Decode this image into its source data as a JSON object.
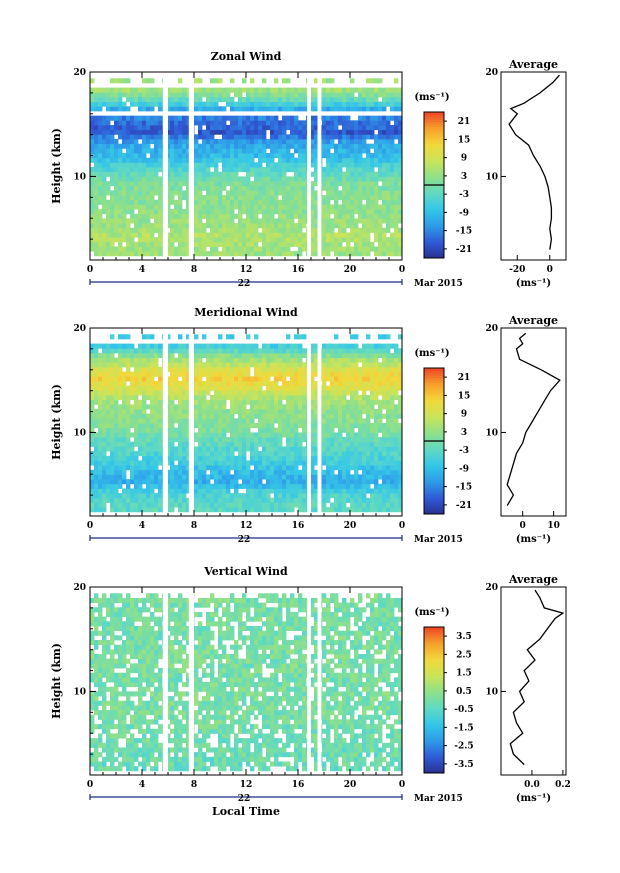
{
  "chart_data": [
    {
      "type": "heatmap",
      "title": "Zonal Wind",
      "ylabel": "Height (km)",
      "xlabel": "",
      "x_ticks": [
        "0",
        "4",
        "8",
        "12",
        "16",
        "20",
        "0"
      ],
      "y_ticks": [
        "20",
        "10"
      ],
      "xlim": [
        0,
        24
      ],
      "ylim": [
        2,
        20
      ],
      "date_label": "22",
      "month_label": "Mar 2015",
      "colorbar": {
        "unit": "(ms⁻¹)",
        "ticks": [
          "21",
          "15",
          "9",
          "3",
          "-3",
          "-9",
          "-15",
          "-21"
        ],
        "range": [
          -24,
          24
        ]
      },
      "rows": [
        {
          "h": 18.0,
          "v": 4
        },
        {
          "h": 17.0,
          "v": -3
        },
        {
          "h": 16.0,
          "v": -14
        },
        {
          "h": 15.0,
          "v": -17
        },
        {
          "h": 14.0,
          "v": -19
        },
        {
          "h": 13.0,
          "v": -12
        },
        {
          "h": 12.0,
          "v": -10
        },
        {
          "h": 11.0,
          "v": -6
        },
        {
          "h": 10.0,
          "v": -2
        },
        {
          "h": 9.0,
          "v": 1
        },
        {
          "h": 8.0,
          "v": 2
        },
        {
          "h": 7.0,
          "v": 2
        },
        {
          "h": 6.0,
          "v": 3
        },
        {
          "h": 5.0,
          "v": 4
        },
        {
          "h": 4.0,
          "v": 6
        },
        {
          "h": 3.0,
          "v": 4
        }
      ],
      "gaps_hours": [
        [
          5.6,
          6.0
        ],
        [
          7.6,
          8.0
        ],
        [
          16.7,
          17.0
        ],
        [
          17.5,
          17.8
        ]
      ],
      "average": {
        "title": "Average",
        "xlabel": "(ms⁻¹)",
        "x_ticks": [
          "-20",
          "0"
        ],
        "xlim": [
          -30,
          10
        ],
        "ylim": [
          2,
          20
        ],
        "y_ticks": [
          "20",
          "10"
        ],
        "profile": [
          {
            "h": 3,
            "v": 0
          },
          {
            "h": 4,
            "v": 1
          },
          {
            "h": 5,
            "v": 0
          },
          {
            "h": 6,
            "v": 1
          },
          {
            "h": 7,
            "v": 1
          },
          {
            "h": 8,
            "v": 0
          },
          {
            "h": 9,
            "v": -1
          },
          {
            "h": 10,
            "v": -3
          },
          {
            "h": 11,
            "v": -6
          },
          {
            "h": 12,
            "v": -10
          },
          {
            "h": 13,
            "v": -13
          },
          {
            "h": 14,
            "v": -21
          },
          {
            "h": 15,
            "v": -25
          },
          {
            "h": 16,
            "v": -20
          },
          {
            "h": 16.5,
            "v": -24
          },
          {
            "h": 17,
            "v": -16
          },
          {
            "h": 18,
            "v": -6
          },
          {
            "h": 19,
            "v": 2
          },
          {
            "h": 19.7,
            "v": 6
          }
        ]
      }
    },
    {
      "type": "heatmap",
      "title": "Meridional Wind",
      "ylabel": "Height (km)",
      "xlabel": "",
      "x_ticks": [
        "0",
        "4",
        "8",
        "12",
        "16",
        "20",
        "0"
      ],
      "y_ticks": [
        "20",
        "10"
      ],
      "xlim": [
        0,
        24
      ],
      "ylim": [
        2,
        20
      ],
      "date_label": "22",
      "month_label": "Mar 2015",
      "colorbar": {
        "unit": "(ms⁻¹)",
        "ticks": [
          "21",
          "15",
          "9",
          "3",
          "-3",
          "-9",
          "-15",
          "-21"
        ],
        "range": [
          -24,
          24
        ]
      },
      "rows": [
        {
          "h": 18.0,
          "v": -6
        },
        {
          "h": 17.0,
          "v": 3
        },
        {
          "h": 16.0,
          "v": 9
        },
        {
          "h": 15.0,
          "v": 14
        },
        {
          "h": 14.0,
          "v": 10
        },
        {
          "h": 13.0,
          "v": 5
        },
        {
          "h": 12.0,
          "v": 3
        },
        {
          "h": 11.0,
          "v": 2
        },
        {
          "h": 10.0,
          "v": 1
        },
        {
          "h": 9.0,
          "v": -2
        },
        {
          "h": 8.0,
          "v": -4
        },
        {
          "h": 7.0,
          "v": -6
        },
        {
          "h": 6.0,
          "v": -9
        },
        {
          "h": 5.0,
          "v": -11
        },
        {
          "h": 4.0,
          "v": -5
        },
        {
          "h": 3.0,
          "v": -3
        }
      ],
      "gaps_hours": [
        [
          5.6,
          6.0
        ],
        [
          7.6,
          8.0
        ],
        [
          16.7,
          17.0
        ],
        [
          17.5,
          17.8
        ]
      ],
      "average": {
        "title": "Average",
        "xlabel": "(ms⁻¹)",
        "x_ticks": [
          "0",
          "10"
        ],
        "xlim": [
          -7,
          14
        ],
        "ylim": [
          2,
          20
        ],
        "y_ticks": [
          "20",
          "10"
        ],
        "profile": [
          {
            "h": 3,
            "v": -5
          },
          {
            "h": 4,
            "v": -3
          },
          {
            "h": 5,
            "v": -5
          },
          {
            "h": 6,
            "v": -4
          },
          {
            "h": 7,
            "v": -3
          },
          {
            "h": 8,
            "v": -2
          },
          {
            "h": 9,
            "v": 0
          },
          {
            "h": 10,
            "v": 1
          },
          {
            "h": 11,
            "v": 3
          },
          {
            "h": 12,
            "v": 5
          },
          {
            "h": 13,
            "v": 7
          },
          {
            "h": 14,
            "v": 9
          },
          {
            "h": 15,
            "v": 12
          },
          {
            "h": 16,
            "v": 6
          },
          {
            "h": 17,
            "v": -1
          },
          {
            "h": 18,
            "v": -2
          },
          {
            "h": 18.5,
            "v": 0
          },
          {
            "h": 19,
            "v": -1
          },
          {
            "h": 19.5,
            "v": 1
          }
        ]
      }
    },
    {
      "type": "heatmap",
      "title": "Vertical Wind",
      "ylabel": "Height (km)",
      "xlabel": "Local Time",
      "x_ticks": [
        "0",
        "4",
        "8",
        "12",
        "16",
        "20",
        "0"
      ],
      "y_ticks": [
        "20",
        "10"
      ],
      "xlim": [
        0,
        24
      ],
      "ylim": [
        2,
        20
      ],
      "date_label": "22",
      "month_label": "Mar 2015",
      "colorbar": {
        "unit": "(ms⁻¹)",
        "ticks": [
          "3.5",
          "2.5",
          "1.5",
          "0.5",
          "-0.5",
          "-1.5",
          "-2.5",
          "-3.5"
        ],
        "range": [
          -4,
          4
        ]
      },
      "rows": [
        {
          "h": 19.0,
          "v": 0.1
        },
        {
          "h": 17.0,
          "v": 0.0
        },
        {
          "h": 15.0,
          "v": 0.0
        },
        {
          "h": 13.0,
          "v": 0.1
        },
        {
          "h": 11.0,
          "v": 0.0
        },
        {
          "h": 9.0,
          "v": 0.1
        },
        {
          "h": 7.0,
          "v": 0.0
        },
        {
          "h": 5.0,
          "v": -0.1
        },
        {
          "h": 3.0,
          "v": -0.2
        }
      ],
      "gaps_hours": [
        [
          5.6,
          6.0
        ],
        [
          7.6,
          8.0
        ],
        [
          16.7,
          17.0
        ],
        [
          17.5,
          17.8
        ]
      ],
      "average": {
        "title": "Average",
        "xlabel": "(ms⁻¹)",
        "x_ticks": [
          "0.0",
          "0.2"
        ],
        "xlim": [
          -0.2,
          0.22
        ],
        "ylim": [
          2,
          20
        ],
        "y_ticks": [
          "20",
          "10"
        ],
        "profile": [
          {
            "h": 3,
            "v": -0.05
          },
          {
            "h": 4,
            "v": -0.12
          },
          {
            "h": 5,
            "v": -0.14
          },
          {
            "h": 6,
            "v": -0.06
          },
          {
            "h": 7,
            "v": -0.1
          },
          {
            "h": 8,
            "v": -0.12
          },
          {
            "h": 9,
            "v": -0.05
          },
          {
            "h": 10,
            "v": -0.08
          },
          {
            "h": 11,
            "v": -0.02
          },
          {
            "h": 12,
            "v": -0.05
          },
          {
            "h": 13,
            "v": 0.02
          },
          {
            "h": 14,
            "v": -0.03
          },
          {
            "h": 15,
            "v": 0.05
          },
          {
            "h": 16,
            "v": 0.1
          },
          {
            "h": 17,
            "v": 0.15
          },
          {
            "h": 17.5,
            "v": 0.2
          },
          {
            "h": 18,
            "v": 0.08
          },
          {
            "h": 19,
            "v": 0.05
          },
          {
            "h": 19.7,
            "v": 0.02
          }
        ]
      }
    }
  ]
}
